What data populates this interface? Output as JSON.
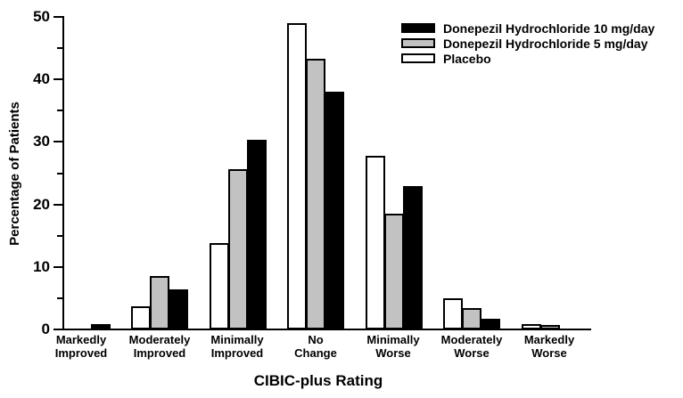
{
  "legend": [
    {
      "label": "Donepezil Hydrochloride 10 mg/day",
      "color": "#000000"
    },
    {
      "label": "Donepezil Hydrochloride 5 mg/day",
      "color": "#c2c2c2"
    },
    {
      "label": "Placebo",
      "color": "#ffffff"
    }
  ],
  "chart_data": {
    "type": "bar",
    "title": "",
    "xlabel": "CIBIC-plus Rating",
    "ylabel": "Percentage of Patients",
    "ylim": [
      0,
      50
    ],
    "y_major_ticks": [
      0,
      10,
      20,
      30,
      40,
      50
    ],
    "y_minor_ticks": [
      5,
      15,
      25,
      35,
      45
    ],
    "grid": false,
    "legend_position": "top-right",
    "categories": [
      [
        "Markedly",
        "Improved"
      ],
      [
        "Moderately",
        "Improved"
      ],
      [
        "Minimally",
        "Improved"
      ],
      [
        "No",
        "Change"
      ],
      [
        "Minimally",
        "Worse"
      ],
      [
        "Moderately",
        "Worse"
      ],
      [
        "Markedly",
        "Worse"
      ]
    ],
    "series": [
      {
        "name": "Placebo",
        "fill": "#ffffff",
        "values": [
          0,
          3.7,
          13.8,
          49,
          27.8,
          5,
          0.8
        ]
      },
      {
        "name": "Donepezil Hydrochloride 5 mg/day",
        "fill": "#c2c2c2",
        "values": [
          0,
          8.6,
          25.6,
          43.3,
          18.5,
          3.4,
          0.7
        ]
      },
      {
        "name": "Donepezil Hydrochloride 10 mg/day",
        "fill": "#000000",
        "values": [
          0.8,
          6.4,
          30.4,
          38,
          23,
          1.7,
          0
        ]
      }
    ]
  }
}
